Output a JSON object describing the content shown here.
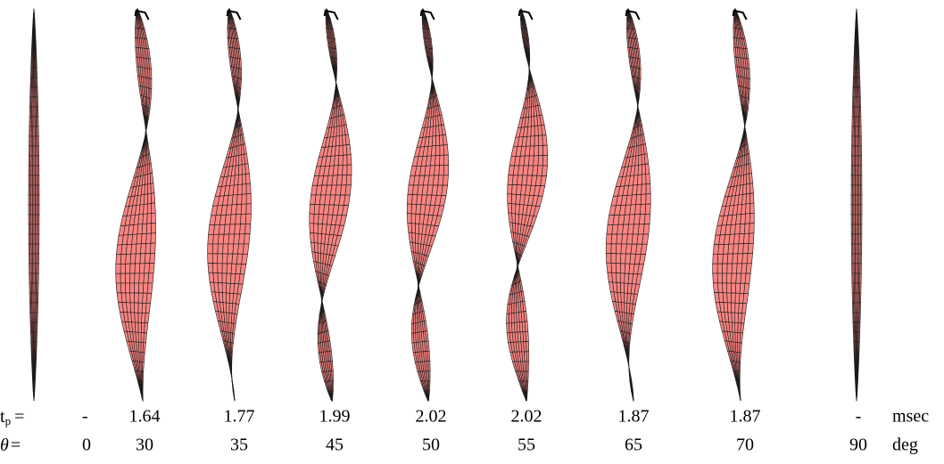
{
  "rows": [
    {
      "symbol": "t",
      "subscript": "p",
      "equals": "=",
      "cells": [
        "-",
        "1.64",
        "1.77",
        "1.99",
        "2.02",
        "2.02",
        "1.87",
        "1.87",
        "-"
      ],
      "unit": "msec"
    },
    {
      "symbol": "θ",
      "equals": "=",
      "cells": [
        "0",
        "30",
        "35",
        "45",
        "50",
        "55",
        "65",
        "70",
        "90"
      ],
      "unit": "deg"
    }
  ]
}
